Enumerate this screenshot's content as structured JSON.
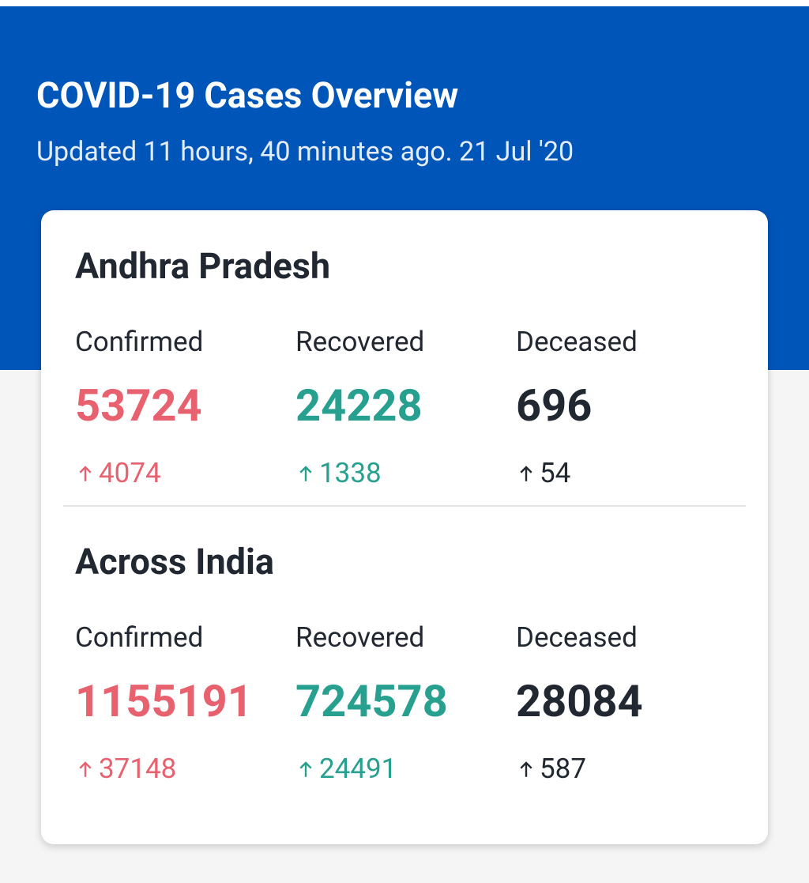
{
  "header": {
    "title": "COVID-19 Cases Overview",
    "subtitle": "Updated 11 hours, 40 minutes ago. 21 Jul '20"
  },
  "sections": [
    {
      "name": "Andhra Pradesh",
      "stats": [
        {
          "label": "Confirmed",
          "value": 53724,
          "delta": 4074
        },
        {
          "label": "Recovered",
          "value": 24228,
          "delta": 1338
        },
        {
          "label": "Deceased",
          "value": 696,
          "delta": 54
        }
      ]
    },
    {
      "name": "Across India",
      "stats": [
        {
          "label": "Confirmed",
          "value": 1155191,
          "delta": 37148
        },
        {
          "label": "Recovered",
          "value": 724578,
          "delta": 24491
        },
        {
          "label": "Deceased",
          "value": 28084,
          "delta": 587
        }
      ]
    }
  ]
}
